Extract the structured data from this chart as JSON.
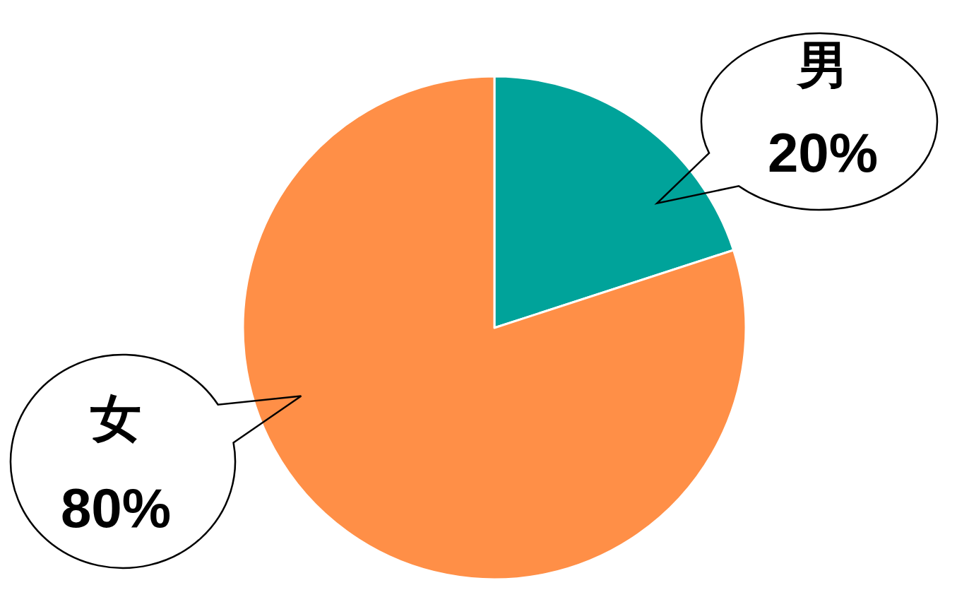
{
  "chart_data": {
    "type": "pie",
    "categories": [
      "男",
      "女"
    ],
    "values": [
      20,
      80
    ],
    "colors": [
      "#00a39a",
      "#ff8f47"
    ],
    "value_labels": [
      "20%",
      "80%"
    ]
  }
}
